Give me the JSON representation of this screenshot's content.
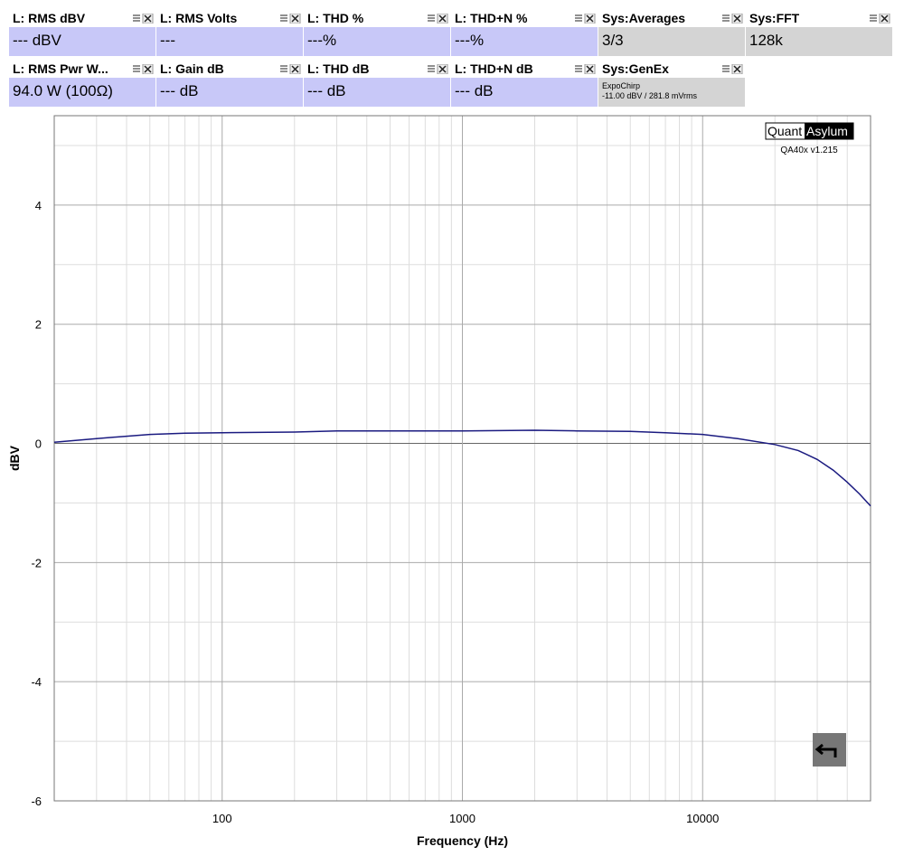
{
  "widget_rows": [
    [
      {
        "title": "L: RMS dBV",
        "value": "--- dBV",
        "color": "#c8c8f8"
      },
      {
        "title": "L: RMS Volts",
        "value": "---",
        "color": "#c8c8f8"
      },
      {
        "title": "L: THD %",
        "value": "---%",
        "color": "#c8c8f8"
      },
      {
        "title": "L: THD+N %",
        "value": "---%",
        "color": "#c8c8f8"
      },
      {
        "title": "Sys:Averages",
        "value": "3/3",
        "color": "#d4d4d4"
      },
      {
        "title": "Sys:FFT",
        "value": "128k",
        "color": "#d4d4d4"
      }
    ],
    [
      {
        "title": "L: RMS Pwr W...",
        "value": "94.0 W (100Ω)",
        "color": "#c8c8f8"
      },
      {
        "title": "L: Gain dB",
        "value": "--- dB",
        "color": "#c8c8f8"
      },
      {
        "title": "L: THD dB",
        "value": "--- dB",
        "color": "#c8c8f8"
      },
      {
        "title": "L: THD+N dB",
        "value": "--- dB",
        "color": "#c8c8f8"
      },
      {
        "title": "Sys:GenEx",
        "value": "ExpoChirp",
        "detail": "-11.00 dBV / 281.8 mVrms",
        "color": "#d4d4d4"
      }
    ]
  ],
  "logo": {
    "left": "Quant",
    "right": "Asylum",
    "version": "QA40x v1.215"
  },
  "chart_data": {
    "type": "line",
    "xlabel": "Frequency (Hz)",
    "ylabel": "dBV",
    "xlog": true,
    "grid": true,
    "xlim": [
      20,
      50000
    ],
    "xticks": [
      100,
      1000,
      10000
    ],
    "ylim": [
      -6,
      5.5
    ],
    "yticks": [
      -6,
      -4,
      -2,
      0,
      2,
      4
    ],
    "color": "#1a1a80",
    "x": [
      20,
      30,
      40,
      50,
      70,
      100,
      200,
      300,
      500,
      1000,
      2000,
      3000,
      5000,
      7000,
      10000,
      14000,
      20000,
      25000,
      30000,
      35000,
      40000,
      45000,
      50000
    ],
    "values": [
      0.02,
      0.08,
      0.12,
      0.15,
      0.17,
      0.18,
      0.19,
      0.21,
      0.21,
      0.21,
      0.22,
      0.21,
      0.2,
      0.18,
      0.15,
      0.08,
      -0.02,
      -0.12,
      -0.27,
      -0.45,
      -0.65,
      -0.85,
      -1.05
    ]
  }
}
